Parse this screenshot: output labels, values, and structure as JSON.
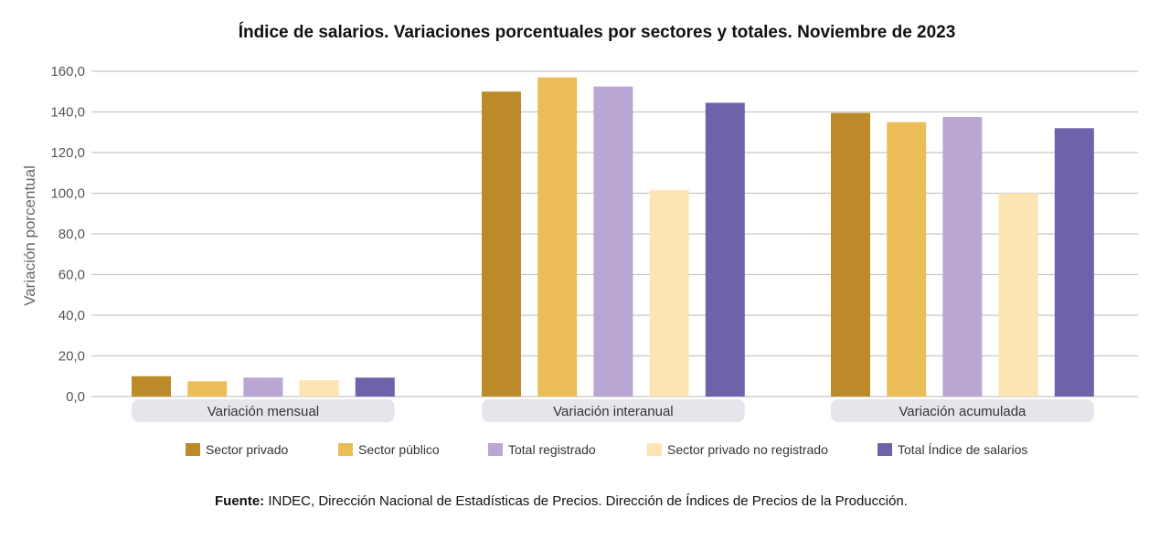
{
  "chart_data": {
    "type": "bar",
    "title": "Índice de salarios. Variaciones porcentuales por sectores y totales. Noviembre de 2023",
    "ylabel": "Variación porcentual",
    "xlabel": "",
    "ylim": [
      0,
      160
    ],
    "yticks": [
      {
        "value": 0,
        "label": "0,0"
      },
      {
        "value": 20,
        "label": "20,0"
      },
      {
        "value": 40,
        "label": "40,0"
      },
      {
        "value": 60,
        "label": "60,0"
      },
      {
        "value": 80,
        "label": "80,0"
      },
      {
        "value": 100,
        "label": "100,0"
      },
      {
        "value": 120,
        "label": "120,0"
      },
      {
        "value": 140,
        "label": "140,0"
      },
      {
        "value": 160,
        "label": "160,0"
      }
    ],
    "grid": true,
    "legend_position": "bottom",
    "categories": [
      "Variación mensual",
      "Variación interanual",
      "Variación acumulada"
    ],
    "series": [
      {
        "name": "Sector privado",
        "color": "#bd8a2a",
        "values": [
          10.0,
          150.0,
          139.5
        ]
      },
      {
        "name": "Sector público",
        "color": "#ebbd57",
        "values": [
          7.5,
          157.0,
          135.0
        ]
      },
      {
        "name": "Total registrado",
        "color": "#b9a6d3",
        "values": [
          9.3,
          152.5,
          137.5
        ]
      },
      {
        "name": "Sector privado no registrado",
        "color": "#fce4b3",
        "values": [
          8.0,
          101.5,
          100.0
        ]
      },
      {
        "name": "Total Índice de salarios",
        "color": "#6e63aa",
        "values": [
          9.3,
          144.5,
          132.0
        ]
      }
    ]
  },
  "source": {
    "label": "Fuente:",
    "text": " INDEC, Dirección Nacional de Estadísticas de Precios. Dirección de Índices de Precios de la Producción."
  }
}
